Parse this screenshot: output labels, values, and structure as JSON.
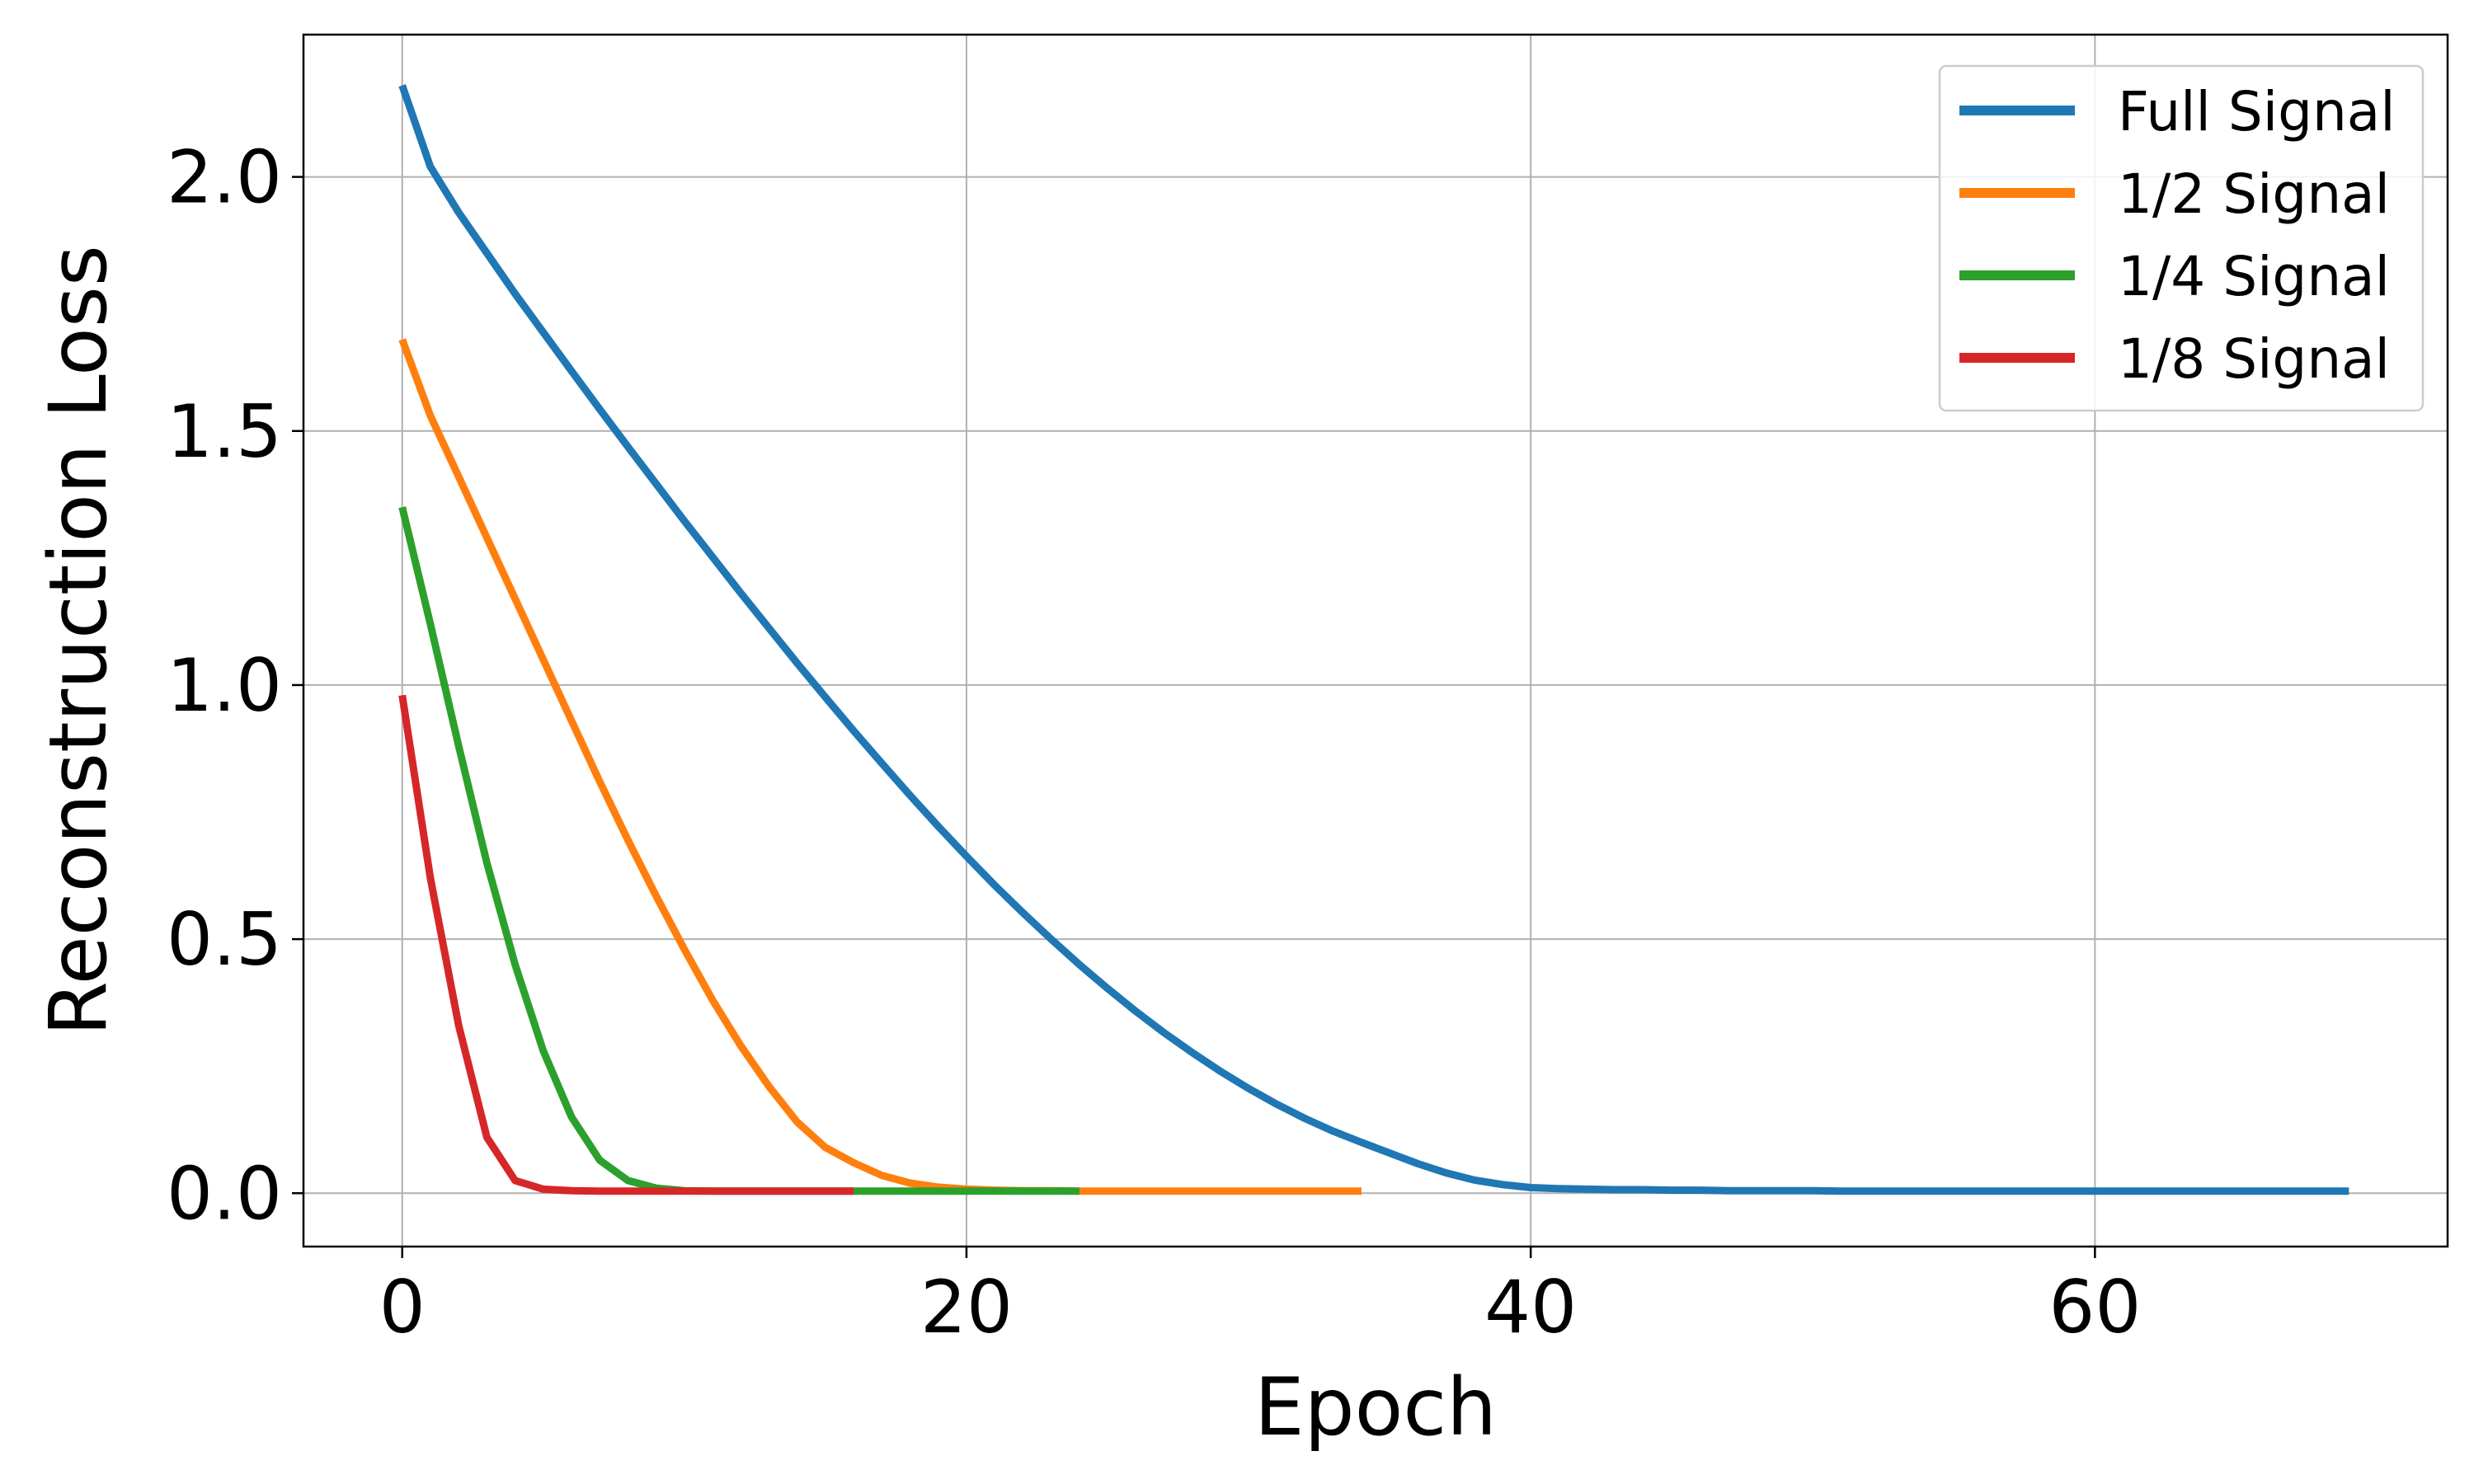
{
  "chart_data": {
    "type": "line",
    "title": "",
    "xlabel": "Epoch",
    "ylabel": "Reconstruction Loss",
    "xlim": [
      -3.5,
      72.5
    ],
    "ylim": [
      -0.105,
      2.28
    ],
    "xticks": [
      0,
      20,
      40,
      60
    ],
    "xtick_labels": [
      "0",
      "20",
      "40",
      "60"
    ],
    "yticks": [
      0.0,
      0.5,
      1.0,
      1.5,
      2.0
    ],
    "ytick_labels": [
      "0.0",
      "0.5",
      "1.0",
      "1.5",
      "2.0"
    ],
    "grid": true,
    "legend_position": "top-right",
    "series": [
      {
        "name": "Full Signal",
        "color": "#1f77b4",
        "x": [
          0,
          1,
          2,
          3,
          4,
          5,
          6,
          7,
          8,
          9,
          10,
          11,
          12,
          13,
          14,
          15,
          16,
          17,
          18,
          19,
          20,
          21,
          22,
          23,
          24,
          25,
          26,
          27,
          28,
          29,
          30,
          31,
          32,
          33,
          34,
          35,
          36,
          37,
          38,
          39,
          40,
          41,
          42,
          43,
          44,
          45,
          46,
          47,
          48,
          49,
          50,
          51,
          52,
          53,
          54,
          55,
          56,
          57,
          58,
          59,
          60,
          61,
          62,
          63,
          64,
          65,
          66,
          67,
          68,
          69
        ],
        "y": [
          2.18,
          2.02,
          1.93,
          1.85,
          1.77,
          1.694,
          1.618,
          1.543,
          1.469,
          1.396,
          1.323,
          1.252,
          1.181,
          1.112,
          1.043,
          0.976,
          0.91,
          0.846,
          0.783,
          0.722,
          0.663,
          0.606,
          0.552,
          0.5,
          0.45,
          0.403,
          0.358,
          0.316,
          0.277,
          0.24,
          0.206,
          0.175,
          0.147,
          0.122,
          0.1,
          0.079,
          0.058,
          0.04,
          0.026,
          0.017,
          0.011,
          0.009,
          0.008,
          0.007,
          0.007,
          0.006,
          0.006,
          0.005,
          0.005,
          0.005,
          0.005,
          0.004,
          0.004,
          0.004,
          0.004,
          0.004,
          0.004,
          0.004,
          0.004,
          0.004,
          0.004,
          0.004,
          0.004,
          0.004,
          0.004,
          0.004,
          0.004,
          0.004,
          0.004,
          0.004
        ]
      },
      {
        "name": "1/2 Signal",
        "color": "#ff7f0e",
        "x": [
          0,
          1,
          2,
          3,
          4,
          5,
          6,
          7,
          8,
          9,
          10,
          11,
          12,
          13,
          14,
          15,
          16,
          17,
          18,
          19,
          20,
          21,
          22,
          23,
          24,
          25,
          26,
          27,
          28,
          29,
          30,
          31,
          32,
          33,
          34
        ],
        "y": [
          1.68,
          1.53,
          1.41,
          1.29,
          1.17,
          1.05,
          0.93,
          0.81,
          0.695,
          0.585,
          0.48,
          0.38,
          0.29,
          0.21,
          0.14,
          0.09,
          0.06,
          0.035,
          0.02,
          0.012,
          0.008,
          0.006,
          0.005,
          0.005,
          0.004,
          0.004,
          0.004,
          0.004,
          0.004,
          0.004,
          0.004,
          0.004,
          0.004,
          0.004,
          0.004
        ]
      },
      {
        "name": "1/4 Signal",
        "color": "#2ca02c",
        "x": [
          0,
          1,
          2,
          3,
          4,
          5,
          6,
          7,
          8,
          9,
          10,
          11,
          12,
          13,
          14,
          15,
          16,
          17,
          18,
          19,
          20,
          21,
          22,
          23,
          24
        ],
        "y": [
          1.35,
          1.12,
          0.88,
          0.65,
          0.45,
          0.28,
          0.15,
          0.065,
          0.025,
          0.01,
          0.005,
          0.004,
          0.004,
          0.004,
          0.004,
          0.004,
          0.004,
          0.004,
          0.004,
          0.004,
          0.004,
          0.004,
          0.004,
          0.004,
          0.004
        ]
      },
      {
        "name": "1/8 Signal",
        "color": "#d62728",
        "x": [
          0,
          1,
          2,
          3,
          4,
          5,
          6,
          7,
          8,
          9,
          10,
          11,
          12,
          13,
          14,
          15,
          16
        ],
        "y": [
          0.98,
          0.62,
          0.33,
          0.11,
          0.025,
          0.008,
          0.005,
          0.004,
          0.004,
          0.004,
          0.004,
          0.004,
          0.004,
          0.004,
          0.004,
          0.004,
          0.004
        ]
      }
    ]
  }
}
